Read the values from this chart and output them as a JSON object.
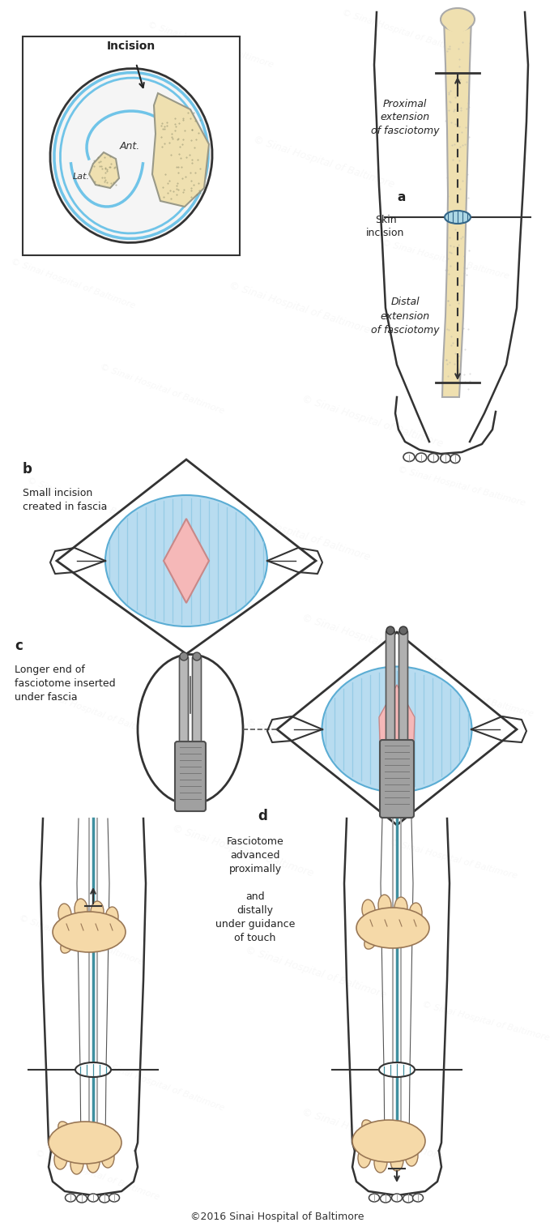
{
  "background_color": "#ffffff",
  "watermark_text": "© Sinai Hospital of Baltimore",
  "watermark_color": "#c8c8c8",
  "copyright_text": "©2016 Sinai Hospital of Baltimore",
  "colors": {
    "bone_color": "#EFE0B0",
    "skin_color": "#F5D9A8",
    "fascia_blue": "#B8DCF0",
    "fascia_blue_dark": "#5BADD4",
    "fascia_stripe": "#8EC8E4",
    "pink": "#F5B8B8",
    "gray_tool": "#A0A0A0",
    "gray_tool_dark": "#606060",
    "teal": "#4090A0",
    "outline": "#222222",
    "light_outline": "#888888",
    "box_bg": "#ffffff"
  },
  "labels": {
    "incision": "Incision",
    "ant": "Ant.",
    "lat": "Lat.",
    "proximal": "Proximal\nextension\nof fasciotomy",
    "a": "a",
    "skin_incision": "Skin\nincision",
    "distal": "Distal\nextension\nof fasciotomy",
    "b": "b",
    "b_text": "Small incision\ncreated in fascia",
    "c": "c",
    "c_text": "Longer end of\nfasciotome inserted\nunder fascia",
    "d": "d",
    "d_text": "Fasciotome\nadvanced\nproximally\n\nand\ndistally\nunder guidance\nof touch"
  }
}
